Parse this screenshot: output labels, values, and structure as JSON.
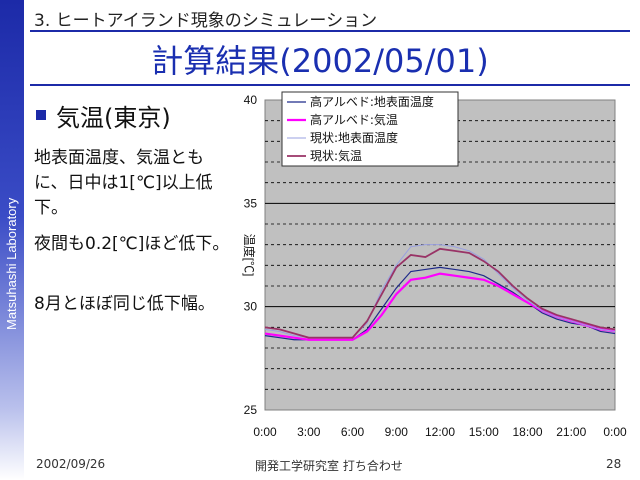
{
  "sidebar": {
    "label": "Matsuhashi Laboratory"
  },
  "header": {
    "section": "3. ヒートアイランド現象のシミュレーション"
  },
  "title": "計算結果(2002/05/01)",
  "bullet": {
    "heading": "気温(東京)",
    "paragraphs": [
      "地表面温度、気温ともに、日中は1[℃]以上低下。",
      "夜間も0.2[℃]ほど低下。",
      "8月とほぼ同じ低下幅。"
    ]
  },
  "footer": {
    "date": "2002/09/26",
    "center": "開発工学研究室 打ち合わせ",
    "page": "28"
  },
  "colors": {
    "brand": "#1c2aa8",
    "plot_bg": "#c0c0c0"
  },
  "chart_data": {
    "type": "line",
    "ylabel": "温度[℃]",
    "xlabel": "",
    "ylim": [
      25,
      40
    ],
    "xlim": [
      0,
      24
    ],
    "x_ticks": [
      "0:00",
      "3:00",
      "6:00",
      "9:00",
      "12:00",
      "15:00",
      "18:00",
      "21:00",
      "0:00"
    ],
    "y_ticks": [
      "25",
      "30",
      "35",
      "40"
    ],
    "grid": "horizontal dashed",
    "legend_position": "top-left",
    "x": [
      0,
      1,
      2,
      3,
      4,
      5,
      6,
      7,
      8,
      9,
      10,
      11,
      12,
      13,
      14,
      15,
      16,
      17,
      18,
      19,
      20,
      21,
      22,
      23,
      24
    ],
    "series": [
      {
        "name": "高アルベド:地表面温度",
        "color": "#1f2a8a",
        "width": 1.2,
        "values": [
          28.6,
          28.5,
          28.4,
          28.4,
          28.4,
          28.4,
          28.4,
          28.9,
          29.9,
          30.9,
          31.7,
          31.8,
          31.9,
          31.8,
          31.7,
          31.5,
          31.1,
          30.7,
          30.2,
          29.7,
          29.4,
          29.2,
          29.1,
          28.8,
          28.7
        ]
      },
      {
        "name": "高アルベド:気温",
        "color": "#ff00ff",
        "width": 2.2,
        "values": [
          28.7,
          28.6,
          28.5,
          28.4,
          28.4,
          28.4,
          28.4,
          28.8,
          29.6,
          30.6,
          31.3,
          31.4,
          31.6,
          31.5,
          31.4,
          31.3,
          31.0,
          30.6,
          30.2,
          29.8,
          29.5,
          29.3,
          29.1,
          28.9,
          28.8
        ]
      },
      {
        "name": "現状:地表面温度",
        "color": "#9aa0e0",
        "width": 1.0,
        "values": [
          28.9,
          28.8,
          28.6,
          28.5,
          28.5,
          28.5,
          28.5,
          29.2,
          30.8,
          32.0,
          32.9,
          33.0,
          33.0,
          32.9,
          32.7,
          32.3,
          31.6,
          30.9,
          30.3,
          29.8,
          29.5,
          29.3,
          29.1,
          28.9,
          28.8
        ]
      },
      {
        "name": "現状:気温",
        "color": "#993366",
        "width": 1.8,
        "values": [
          29.0,
          28.9,
          28.7,
          28.5,
          28.5,
          28.5,
          28.5,
          29.3,
          30.6,
          31.9,
          32.5,
          32.4,
          32.8,
          32.7,
          32.6,
          32.2,
          31.7,
          31.0,
          30.4,
          29.9,
          29.6,
          29.4,
          29.2,
          29.0,
          28.9
        ]
      }
    ]
  }
}
